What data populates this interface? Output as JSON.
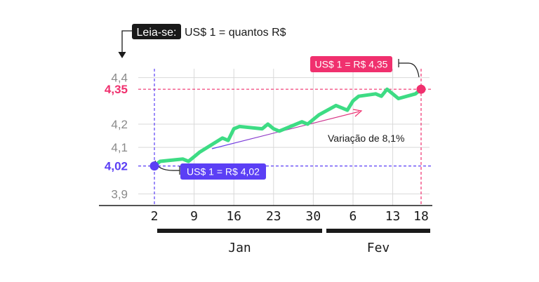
{
  "chart_data": {
    "type": "line",
    "legend_prefix": "Leia-se:",
    "legend_text": "US$ 1 = quantos R$",
    "ylim": [
      3.85,
      4.42
    ],
    "yticks": [
      {
        "value": 3.9,
        "label": "3,9",
        "highlight": "none"
      },
      {
        "value": 4.02,
        "label": "4,02",
        "highlight": "start"
      },
      {
        "value": 4.1,
        "label": "4,1",
        "highlight": "none"
      },
      {
        "value": 4.2,
        "label": "4,2",
        "highlight": "none"
      },
      {
        "value": 4.35,
        "label": "4,35",
        "highlight": "end"
      },
      {
        "value": 4.4,
        "label": "4,4",
        "highlight": "none"
      }
    ],
    "xticks": [
      {
        "day": 2,
        "label": "2"
      },
      {
        "day": 9,
        "label": "9"
      },
      {
        "day": 16,
        "label": "16"
      },
      {
        "day": 23,
        "label": "23"
      },
      {
        "day": 30,
        "label": "30"
      },
      {
        "day": 37,
        "label": "6"
      },
      {
        "day": 44,
        "label": "13"
      },
      {
        "day": 49,
        "label": "18"
      }
    ],
    "months": [
      {
        "label": "Jan",
        "from": 2,
        "to": 31
      },
      {
        "label": "Fev",
        "from": 33,
        "to": 49
      }
    ],
    "series": [
      {
        "x": [
          2,
          3,
          7,
          8,
          9,
          10,
          14,
          15,
          16,
          17,
          21,
          22,
          23,
          24,
          28,
          29,
          30,
          31,
          34,
          35,
          36,
          37,
          38,
          41,
          42,
          43,
          44,
          45,
          48,
          49
        ],
        "y": [
          4.02,
          4.04,
          4.05,
          4.04,
          4.06,
          4.08,
          4.14,
          4.13,
          4.18,
          4.19,
          4.18,
          4.2,
          4.18,
          4.17,
          4.21,
          4.2,
          4.22,
          4.24,
          4.28,
          4.27,
          4.26,
          4.3,
          4.32,
          4.33,
          4.32,
          4.35,
          4.33,
          4.31,
          4.33,
          4.35
        ]
      }
    ],
    "start_point": {
      "x": 2,
      "y": 4.02
    },
    "end_point": {
      "x": 49,
      "y": 4.35
    },
    "start_label": "US$ 1 = R$ 4,02",
    "end_label": "US$ 1 = R$ 4,35",
    "variation_label": "Variação de 8,1%",
    "colors": {
      "line": "#3ddc84",
      "start": "#5b3ff5",
      "end": "#f0306e",
      "axis": "#1a1a1a",
      "grid": "#d9d9d9",
      "tick": "#8a8a8a"
    }
  }
}
